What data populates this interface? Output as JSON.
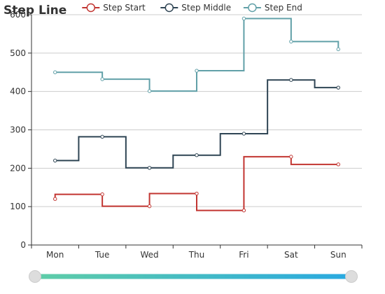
{
  "chart_data": {
    "type": "line",
    "step": true,
    "title": "Step Line",
    "categories": [
      "Mon",
      "Tue",
      "Wed",
      "Thu",
      "Fri",
      "Sat",
      "Sun"
    ],
    "ylim": [
      0,
      600
    ],
    "yticks": [
      0,
      100,
      200,
      300,
      400,
      500,
      600
    ],
    "grid": true,
    "legend_position": "top",
    "series": [
      {
        "name": "Step Start",
        "step": "start",
        "color": "#c23531",
        "values": [
          120,
          132,
          101,
          134,
          90,
          230,
          210
        ]
      },
      {
        "name": "Step Middle",
        "step": "middle",
        "color": "#2f4554",
        "values": [
          220,
          282,
          201,
          234,
          290,
          430,
          410
        ]
      },
      {
        "name": "Step End",
        "step": "end",
        "color": "#61a0a8",
        "values": [
          450,
          432,
          401,
          454,
          590,
          530,
          510
        ]
      }
    ]
  },
  "zoom_slider": {
    "range_start": 0,
    "range_end": 1,
    "color_start": "#5fcda7",
    "color_end": "#29a9e1"
  }
}
